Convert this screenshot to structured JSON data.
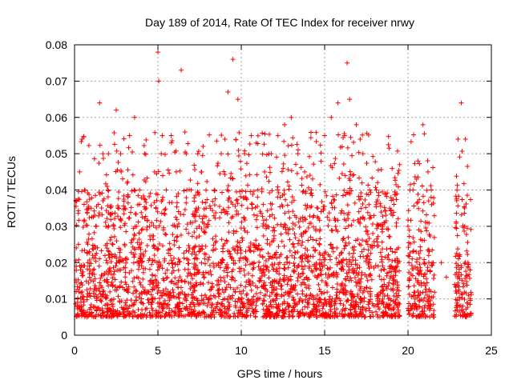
{
  "chart_data": {
    "type": "scatter",
    "title": "Day 189 of 2014, Rate Of TEC Index for receiver nrwy",
    "xlabel": "GPS time / hours",
    "ylabel": "ROTI / TECUs",
    "xlim": [
      0,
      25
    ],
    "ylim": [
      0,
      0.08
    ],
    "xticks": [
      0,
      5,
      10,
      15,
      20,
      25
    ],
    "xtick_labels": [
      "0",
      "5",
      "10",
      "15",
      "20",
      "25"
    ],
    "yticks": [
      0,
      0.01,
      0.02,
      0.03,
      0.04,
      0.05,
      0.06,
      0.07,
      0.08
    ],
    "ytick_labels": [
      "0",
      "0.01",
      "0.02",
      "0.03",
      "0.04",
      "0.05",
      "0.06",
      "0.07",
      "0.08"
    ],
    "grid": true,
    "marker": "plus",
    "series": [
      {
        "name": "ROTI",
        "color": "#ff0000",
        "x": [
          0.1,
          0.3,
          0.45,
          0.6,
          0.8,
          1.0,
          1.3,
          1.5,
          1.7,
          2.0,
          2.3,
          2.5,
          2.8,
          3.0,
          3.3,
          3.6,
          3.9,
          4.2,
          4.5,
          4.8,
          5.0,
          5.05,
          5.2,
          5.5,
          5.8,
          6.1,
          6.4,
          6.7,
          7.0,
          7.3,
          7.6,
          8.0,
          8.4,
          8.8,
          9.2,
          9.5,
          9.8,
          10.2,
          10.6,
          11.0,
          11.4,
          11.8,
          12.2,
          12.6,
          13.0,
          13.4,
          13.8,
          14.2,
          14.6,
          15.0,
          15.4,
          15.8,
          16.2,
          16.35,
          16.5,
          16.9,
          17.3,
          17.7,
          18.1,
          18.5,
          18.9,
          19.3,
          19.5,
          20.0,
          20.3,
          20.6,
          20.9,
          21.2,
          21.4,
          22.0,
          22.3,
          22.8,
          23.0,
          23.2,
          23.4,
          23.6
        ],
        "y": [
          0.012,
          0.045,
          0.054,
          0.04,
          0.02,
          0.035,
          0.03,
          0.064,
          0.05,
          0.04,
          0.025,
          0.062,
          0.045,
          0.035,
          0.055,
          0.06,
          0.04,
          0.05,
          0.03,
          0.045,
          0.078,
          0.07,
          0.05,
          0.04,
          0.055,
          0.045,
          0.073,
          0.05,
          0.04,
          0.035,
          0.045,
          0.03,
          0.04,
          0.05,
          0.067,
          0.076,
          0.065,
          0.05,
          0.055,
          0.04,
          0.045,
          0.05,
          0.055,
          0.058,
          0.06,
          0.05,
          0.045,
          0.04,
          0.035,
          0.055,
          0.06,
          0.064,
          0.055,
          0.075,
          0.065,
          0.058,
          0.05,
          0.04,
          0.04,
          0.03,
          0.035,
          0.03,
          0.047,
          0.03,
          0.04,
          0.048,
          0.058,
          0.045,
          0.04,
          0.02,
          0.016,
          0.014,
          0.054,
          0.064,
          0.03,
          0.02
        ]
      }
    ],
    "baseline_range": [
      0.005,
      0.025
    ],
    "data_gaps_hours": [
      [
        21.6,
        22.8
      ]
    ]
  }
}
